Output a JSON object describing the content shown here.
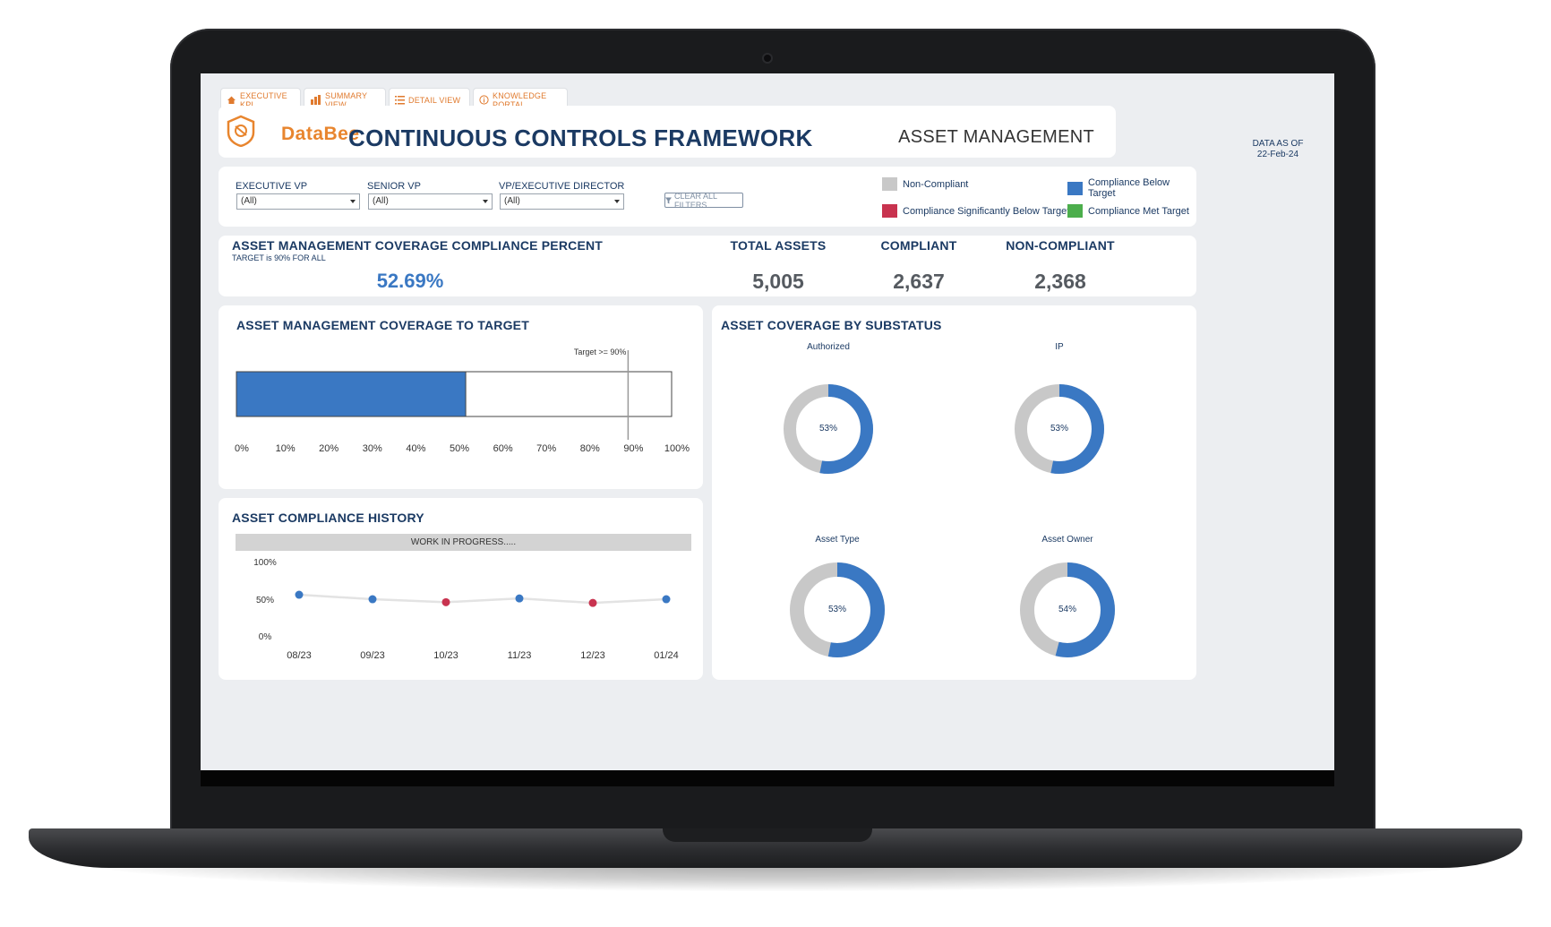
{
  "tabs": [
    {
      "label": "EXECUTIVE KPI",
      "icon": "home-icon"
    },
    {
      "label": "SUMMARY VIEW",
      "icon": "bar-chart-icon"
    },
    {
      "label": "DETAIL VIEW",
      "icon": "list-icon"
    },
    {
      "label": "KNOWLEDGE PORTAL",
      "icon": "info-icon"
    }
  ],
  "header": {
    "logo_text": "DataBee",
    "title": "CONTINUOUS CONTROLS FRAMEWORK",
    "section": "ASSET MANAGEMENT",
    "data_as_of_label": "DATA AS OF",
    "data_as_of_date": "22-Feb-24"
  },
  "filters": {
    "executive_vp": {
      "label": "EXECUTIVE VP",
      "value": "(All)"
    },
    "senior_vp": {
      "label": "SENIOR VP",
      "value": "(All)"
    },
    "vp_exec_director": {
      "label": "VP/EXECUTIVE DIRECTOR",
      "value": "(All)"
    },
    "clear_label": "CLEAR ALL FILTERS"
  },
  "legend": [
    {
      "label": "Non-Compliant",
      "color": "#c8c8c8"
    },
    {
      "label": "Compliance Below Target",
      "color": "#3a78c3"
    },
    {
      "label": "Compliance Significantly Below Target",
      "color": "#c8334f"
    },
    {
      "label": "Compliance Met Target",
      "color": "#4cae4c"
    }
  ],
  "kpi": {
    "coverage_title": "ASSET MANAGEMENT COVERAGE COMPLIANCE PERCENT",
    "target_note": "TARGET is 90% FOR ALL",
    "coverage_value": "52.69%",
    "total_assets_label": "TOTAL ASSETS",
    "total_assets_value": "5,005",
    "compliant_label": "COMPLIANT",
    "compliant_value": "2,637",
    "non_compliant_label": "NON-COMPLIANT",
    "non_compliant_value": "2,368"
  },
  "coverage_panel": {
    "title": "ASSET MANAGEMENT COVERAGE TO TARGET",
    "target_label": "Target >= 90%"
  },
  "history_panel": {
    "title": "ASSET COMPLIANCE HISTORY",
    "banner": "WORK IN PROGRESS....."
  },
  "substatus_panel": {
    "title": "ASSET COVERAGE BY SUBSTATUS"
  },
  "chart_data": [
    {
      "type": "bar",
      "orientation": "horizontal",
      "title": "ASSET MANAGEMENT COVERAGE TO TARGET",
      "value": 52.69,
      "target": 90,
      "xlim": [
        0,
        100
      ],
      "ticks": [
        "0%",
        "10%",
        "20%",
        "30%",
        "40%",
        "50%",
        "60%",
        "70%",
        "80%",
        "90%",
        "100%"
      ],
      "bar_color": "#3a78c3"
    },
    {
      "type": "line",
      "title": "ASSET COMPLIANCE HISTORY",
      "x": [
        "08/23",
        "09/23",
        "10/23",
        "11/23",
        "12/23",
        "01/24"
      ],
      "values": [
        59,
        53,
        49,
        54,
        48,
        53
      ],
      "colors": [
        "#3a78c3",
        "#3a78c3",
        "#c8334f",
        "#3a78c3",
        "#c8334f",
        "#3a78c3"
      ],
      "ylim": [
        0,
        100
      ],
      "yticks": [
        "100%",
        "50%",
        "0%"
      ]
    },
    {
      "type": "pie",
      "title": "ASSET COVERAGE BY SUBSTATUS",
      "charts": [
        {
          "name": "Authorized",
          "value": 53,
          "label": "53%"
        },
        {
          "name": "IP",
          "value": 53,
          "label": "53%"
        },
        {
          "name": "Asset Type",
          "value": 53,
          "label": "53%"
        },
        {
          "name": "Asset Owner",
          "value": 54,
          "label": "54%"
        }
      ],
      "colors": {
        "compliant": "#3a78c3",
        "non_compliant": "#c8c8c8"
      }
    }
  ]
}
